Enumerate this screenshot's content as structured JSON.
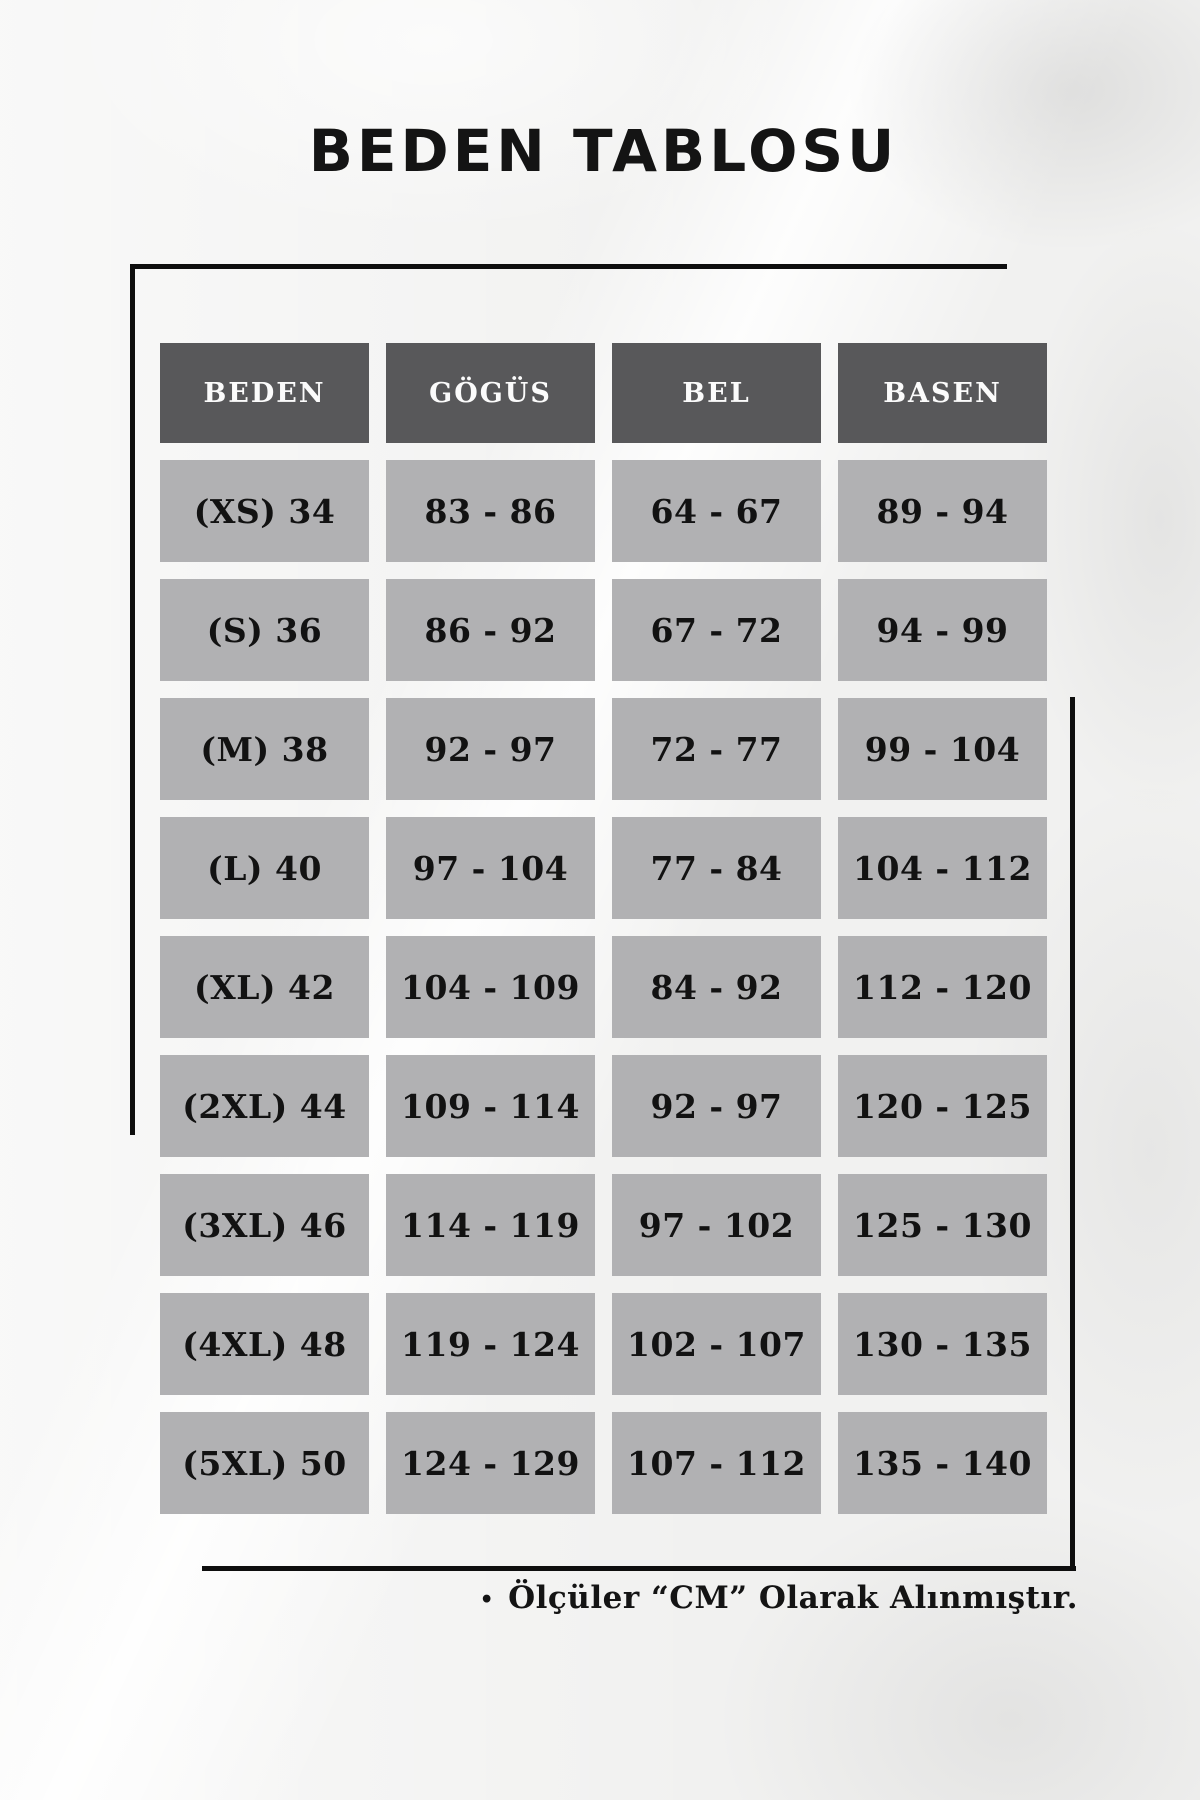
{
  "title": "BEDEN TABLOSU",
  "table": {
    "headers": [
      "BEDEN",
      "GÖGÜS",
      "BEL",
      "BASEN"
    ],
    "rows": [
      [
        "(XS) 34",
        "83 - 86",
        "64 - 67",
        "89 - 94"
      ],
      [
        "(S) 36",
        "86 - 92",
        "67 - 72",
        "94 - 99"
      ],
      [
        "(M) 38",
        "92 - 97",
        "72 - 77",
        "99 - 104"
      ],
      [
        "(L) 40",
        "97 - 104",
        "77 - 84",
        "104 - 112"
      ],
      [
        "(XL) 42",
        "104 - 109",
        "84 - 92",
        "112 - 120"
      ],
      [
        "(2XL) 44",
        "109 - 114",
        "92 - 97",
        "120 - 125"
      ],
      [
        "(3XL) 46",
        "114 - 119",
        "97 - 102",
        "125 - 130"
      ],
      [
        "(4XL) 48",
        "119 - 124",
        "102 - 107",
        "130 - 135"
      ],
      [
        "(5XL) 50",
        "124 - 129",
        "107 - 112",
        "135 - 140"
      ]
    ]
  },
  "footer": {
    "bullet": "•",
    "note": "Ölçüler “CM” Olarak Alınmıştır."
  },
  "colors": {
    "header_bg": "#58585a",
    "cell_bg": "#b1b1b3",
    "line": "#0e0e0e",
    "title_text": "#141414",
    "header_text": "#fbfbfb",
    "cell_text": "#121212",
    "background": "#f1f1f0"
  }
}
